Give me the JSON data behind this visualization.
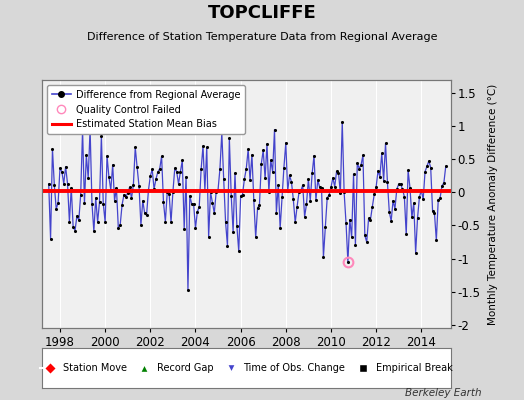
{
  "title": "TOPCLIFFE",
  "subtitle": "Difference of Station Temperature Data from Regional Average",
  "ylabel_right": "Monthly Temperature Anomaly Difference (°C)",
  "watermark": "Berkeley Earth",
  "xlim": [
    1997.2,
    2015.3
  ],
  "ylim": [
    -2.05,
    1.7
  ],
  "yticks": [
    -2,
    -1.5,
    -1,
    -0.5,
    0,
    0.5,
    1,
    1.5
  ],
  "xticks": [
    1998,
    2000,
    2002,
    2004,
    2006,
    2008,
    2010,
    2012,
    2014
  ],
  "mean_bias": 0.02,
  "plot_bg": "#f0f0f0",
  "outer_bg": "#d8d8d8",
  "line_color": "#4444cc",
  "dot_color": "#000000",
  "bias_color": "#ff0000",
  "qc_fail_x": 2010.75,
  "qc_fail_y": -1.05,
  "seed": 42
}
